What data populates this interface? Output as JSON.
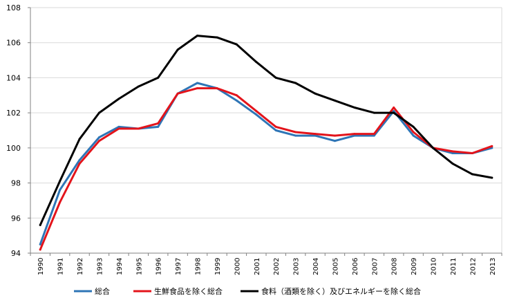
{
  "chart_data": {
    "type": "line",
    "title": "",
    "xlabel": "",
    "ylabel": "",
    "ylim": [
      94,
      108
    ],
    "yticks": [
      94,
      96,
      98,
      100,
      102,
      104,
      106,
      108
    ],
    "grid": true,
    "legend_position": "bottom",
    "categories": [
      "1990",
      "1991",
      "1992",
      "1993",
      "1994",
      "1995",
      "1996",
      "1997",
      "1998",
      "1999",
      "2000",
      "2001",
      "2002",
      "2003",
      "2004",
      "2005",
      "2006",
      "2007",
      "2008",
      "2009",
      "2010",
      "2011",
      "2012",
      "2013"
    ],
    "series": [
      {
        "name": "総合",
        "color": "#2e75b6",
        "values": [
          94.5,
          97.6,
          99.3,
          100.6,
          101.2,
          101.1,
          101.2,
          103.1,
          103.7,
          103.4,
          102.7,
          101.9,
          101.0,
          100.7,
          100.7,
          100.4,
          100.7,
          100.7,
          102.1,
          100.7,
          100.0,
          99.7,
          99.7,
          100.0
        ]
      },
      {
        "name": "生鮮食品を除く総合",
        "color": "#e3141b",
        "values": [
          94.2,
          96.9,
          99.1,
          100.4,
          101.1,
          101.1,
          101.4,
          103.1,
          103.4,
          103.4,
          103.0,
          102.1,
          101.2,
          100.9,
          100.8,
          100.7,
          100.8,
          100.8,
          102.3,
          100.9,
          100.0,
          99.8,
          99.7,
          100.1
        ]
      },
      {
        "name": "食料（酒類を除く）及びエネルギーを除く総合",
        "color": "#000000",
        "values": [
          95.6,
          98.1,
          100.5,
          102.0,
          102.8,
          103.5,
          104.0,
          105.6,
          106.4,
          106.3,
          105.9,
          104.9,
          104.0,
          103.7,
          103.1,
          102.7,
          102.3,
          102.0,
          102.0,
          101.2,
          100.0,
          99.1,
          98.5,
          98.3
        ]
      }
    ]
  }
}
